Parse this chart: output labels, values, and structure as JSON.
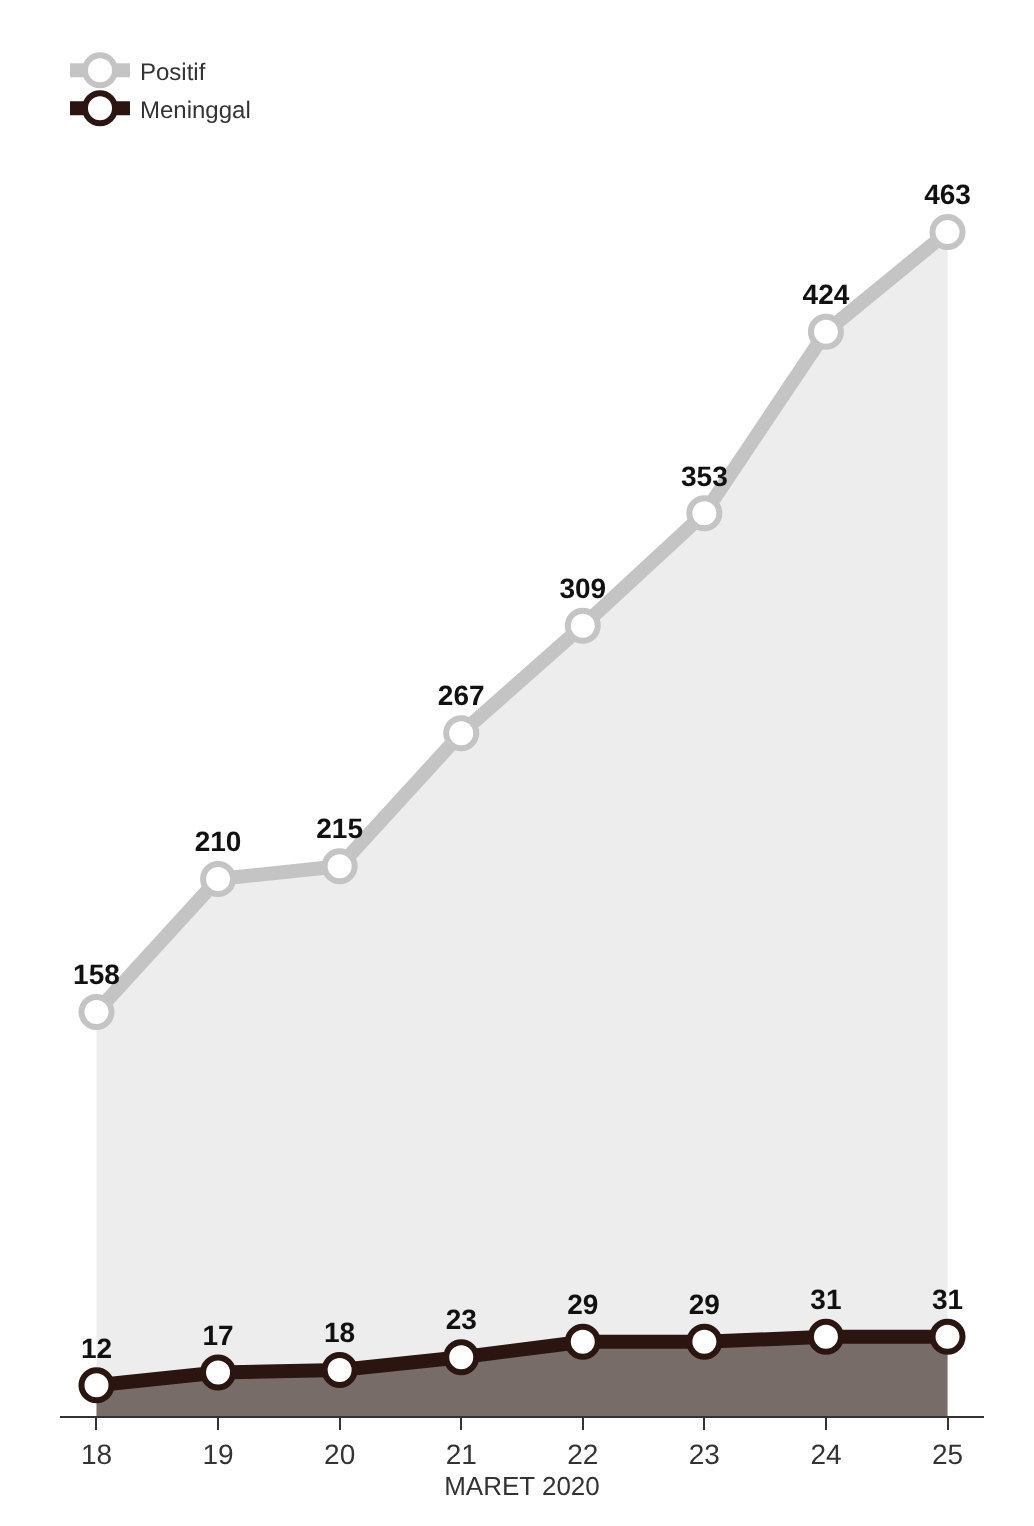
{
  "chart_data": {
    "type": "area",
    "xlabel": "MARET 2020",
    "categories": [
      "18",
      "19",
      "20",
      "21",
      "22",
      "23",
      "24",
      "25"
    ],
    "series": [
      {
        "name": "Positif",
        "color": "#c4c4c4",
        "values": [
          158,
          210,
          215,
          267,
          309,
          353,
          424,
          463
        ]
      },
      {
        "name": "Meninggal",
        "color": "#2a1510",
        "values": [
          12,
          17,
          18,
          23,
          29,
          29,
          31,
          31
        ]
      }
    ],
    "data_labels": true,
    "marker": "circle",
    "line_style": "solid",
    "grid": false,
    "legend": "top left",
    "tick_labels": "x"
  }
}
